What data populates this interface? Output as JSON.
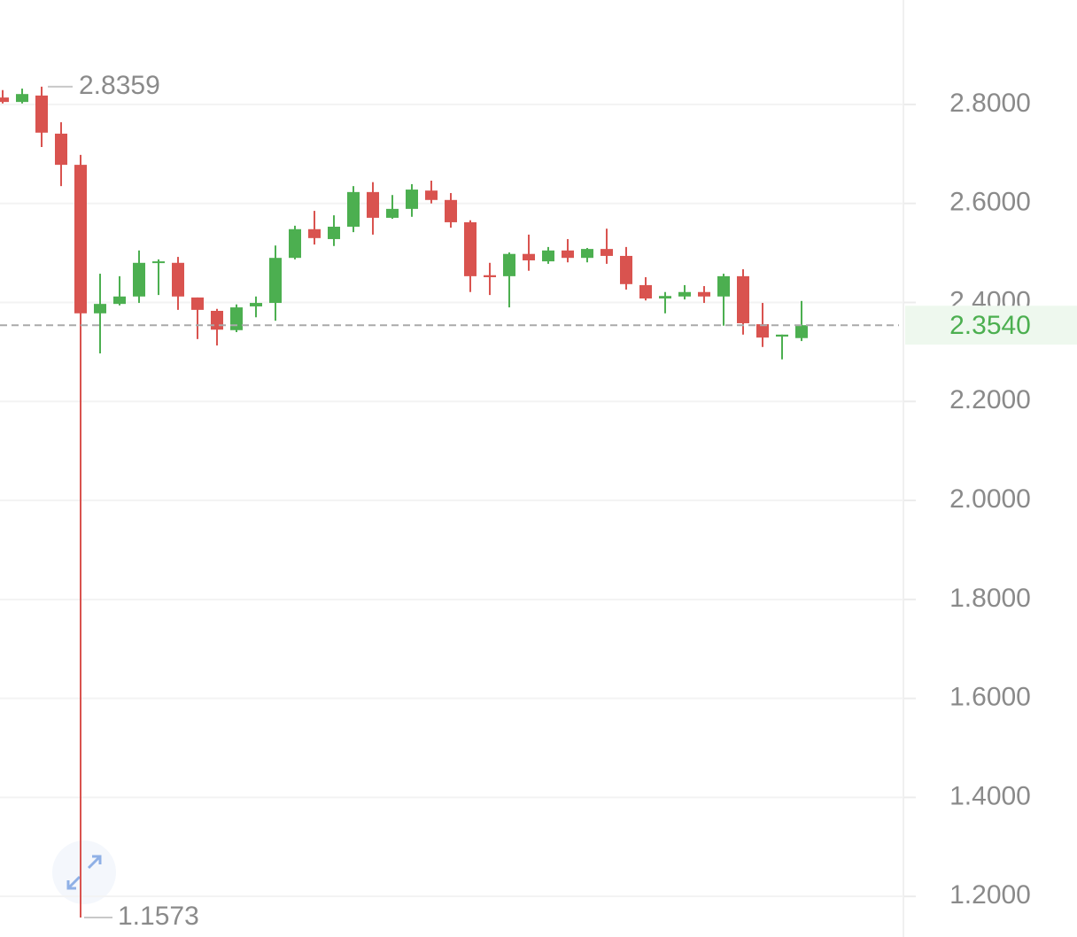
{
  "chart_data": {
    "type": "candlestick",
    "up_color": "#4caf50",
    "down_color": "#d9534f",
    "grid": true,
    "ylim": [
      1.118,
      3.011
    ],
    "yticks": [
      {
        "value": 1.2,
        "label": "1.2000"
      },
      {
        "value": 1.4,
        "label": "1.4000"
      },
      {
        "value": 1.6,
        "label": "1.6000"
      },
      {
        "value": 1.8,
        "label": "1.8000"
      },
      {
        "value": 2.0,
        "label": "2.0000"
      },
      {
        "value": 2.2,
        "label": "2.2000"
      },
      {
        "value": 2.4,
        "label": "2.4000"
      },
      {
        "value": 2.6,
        "label": "2.6000"
      },
      {
        "value": 2.8,
        "label": "2.8000"
      }
    ],
    "last_price": {
      "value": 2.354,
      "label": "2.3540"
    },
    "max_label": 2.8359,
    "min_label": 1.1573,
    "open": [
      2.814,
      2.805,
      2.818,
      2.741,
      2.678,
      2.378,
      2.397,
      2.412,
      2.48,
      2.48,
      2.41,
      2.383,
      2.344,
      2.392,
      2.399,
      2.49,
      2.548,
      2.528,
      2.553,
      2.623,
      2.571,
      2.589,
      2.626,
      2.607,
      2.562,
      2.455,
      2.453,
      2.498,
      2.483,
      2.505,
      2.49,
      2.508,
      2.494,
      2.435,
      2.408,
      2.412,
      2.421,
      2.412,
      2.453,
      2.356,
      2.331,
      2.328
    ],
    "high": [
      2.829,
      2.832,
      2.8359,
      2.764,
      2.698,
      2.458,
      2.453,
      2.505,
      2.487,
      2.492,
      2.41,
      2.387,
      2.396,
      2.412,
      2.515,
      2.555,
      2.585,
      2.576,
      2.635,
      2.643,
      2.617,
      2.639,
      2.646,
      2.621,
      2.566,
      2.48,
      2.501,
      2.537,
      2.512,
      2.528,
      2.51,
      2.549,
      2.512,
      2.451,
      2.421,
      2.435,
      2.433,
      2.458,
      2.467,
      2.399,
      2.335,
      2.403
    ],
    "low": [
      2.802,
      2.802,
      2.714,
      2.635,
      1.1573,
      2.297,
      2.394,
      2.399,
      2.415,
      2.385,
      2.326,
      2.313,
      2.34,
      2.37,
      2.363,
      2.487,
      2.517,
      2.514,
      2.542,
      2.537,
      2.569,
      2.573,
      2.6,
      2.551,
      2.421,
      2.415,
      2.39,
      2.464,
      2.478,
      2.481,
      2.481,
      2.478,
      2.426,
      2.404,
      2.378,
      2.406,
      2.399,
      2.353,
      2.335,
      2.31,
      2.285,
      2.322
    ],
    "close": [
      2.805,
      2.821,
      2.743,
      2.678,
      2.378,
      2.397,
      2.412,
      2.48,
      2.483,
      2.412,
      2.385,
      2.345,
      2.39,
      2.399,
      2.49,
      2.548,
      2.53,
      2.553,
      2.623,
      2.571,
      2.589,
      2.628,
      2.607,
      2.562,
      2.453,
      2.451,
      2.498,
      2.485,
      2.505,
      2.49,
      2.508,
      2.494,
      2.437,
      2.408,
      2.413,
      2.421,
      2.412,
      2.453,
      2.358,
      2.329,
      2.335,
      2.354
    ]
  }
}
